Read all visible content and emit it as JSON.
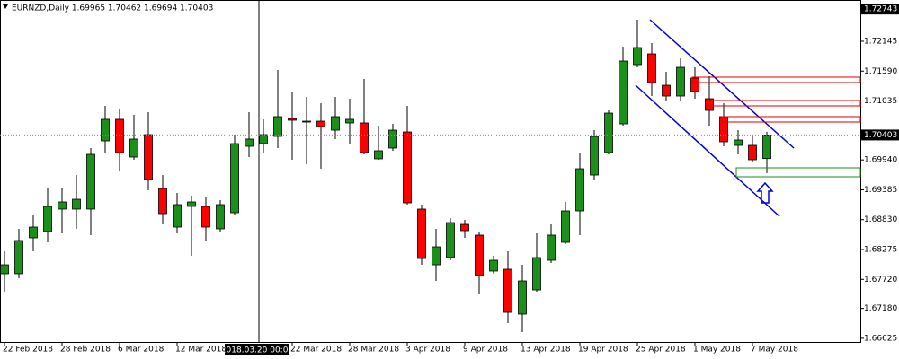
{
  "chart_data": {
    "type": "candlestick",
    "title": "EURNZD,Daily  1.69965 1.70462 1.69694 1.70403",
    "crosshair_label": "2018.03.20 00:00",
    "categories": [
      "22 Feb 2018",
      null,
      null,
      null,
      "28 Feb 2018",
      null,
      null,
      null,
      "6 Mar 2018",
      null,
      null,
      null,
      "12 Mar 2018",
      null,
      null,
      null,
      null,
      null,
      null,
      null,
      "22 Mar 2018",
      null,
      null,
      null,
      "28 Mar 2018",
      null,
      null,
      null,
      "3 Apr 2018",
      null,
      null,
      null,
      "9 Apr 2018",
      null,
      null,
      null,
      "13 Apr 2018",
      null,
      null,
      null,
      "19 Apr 2018",
      null,
      null,
      null,
      "25 Apr 2018",
      null,
      null,
      null,
      "1 May 2018",
      null,
      null,
      null,
      "7 May 2018",
      null
    ],
    "open": [
      1.67825,
      1.67825,
      1.68492,
      1.68609,
      1.69026,
      1.69026,
      1.69026,
      1.70293,
      1.70694,
      1.69993,
      1.7041,
      1.69409,
      1.68692,
      1.69076,
      1.69076,
      1.68659,
      1.68959,
      1.70193,
      1.70243,
      1.70377,
      1.7071,
      1.7066,
      1.7066,
      1.70493,
      1.70627,
      1.70627,
      1.6996,
      1.7016,
      1.7046,
      1.69026,
      1.67991,
      1.68125,
      1.68742,
      1.68542,
      1.67875,
      1.67908,
      1.67074,
      1.67524,
      1.68075,
      1.68408,
      1.68992,
      1.69659,
      1.70076,
      1.7061,
      1.71711,
      1.71911,
      1.71327,
      1.71127,
      1.71461,
      1.71077,
      1.70744,
      1.7021,
      1.7021,
      1.69965
    ],
    "high": [
      1.68242,
      1.68659,
      1.68909,
      1.69409,
      1.69409,
      1.69659,
      1.7016,
      1.70944,
      1.70877,
      1.70777,
      1.70827,
      1.69659,
      1.69326,
      1.69276,
      1.69242,
      1.69192,
      1.7041,
      1.70827,
      1.70694,
      1.71611,
      1.71194,
      1.71111,
      1.70994,
      1.71111,
      1.71077,
      1.71444,
      1.70577,
      1.7061,
      1.70944,
      1.69109,
      1.68659,
      1.68859,
      1.68825,
      1.68609,
      1.68158,
      1.68242,
      1.67991,
      1.68575,
      1.68742,
      1.69159,
      1.70076,
      1.70493,
      1.7086,
      1.72045,
      1.72545,
      1.72111,
      1.71578,
      1.71828,
      1.71661,
      1.71494,
      1.70994,
      1.70493,
      1.70377,
      1.70462
    ],
    "low": [
      1.67491,
      1.67741,
      1.68242,
      1.68408,
      1.68575,
      1.68659,
      1.68542,
      1.70076,
      1.69743,
      1.69943,
      1.69376,
      1.68742,
      1.68575,
      1.68158,
      1.68442,
      1.68609,
      1.68909,
      1.69993,
      1.70076,
      1.7016,
      1.69943,
      1.6986,
      1.69776,
      1.70327,
      1.70243,
      1.70043,
      1.69943,
      1.7011,
      1.69109,
      1.67991,
      1.67691,
      1.68075,
      1.68492,
      1.67441,
      1.67825,
      1.66907,
      1.6674,
      1.67491,
      1.68025,
      1.68375,
      1.68542,
      1.69576,
      1.70043,
      1.70577,
      1.71661,
      1.71127,
      1.71027,
      1.71044,
      1.71077,
      1.70577,
      1.70193,
      1.70043,
      1.6991,
      1.69694
    ],
    "close": [
      1.67991,
      1.68442,
      1.68692,
      1.69076,
      1.69159,
      1.69209,
      1.70043,
      1.70694,
      1.70076,
      1.70327,
      1.69576,
      1.68942,
      1.69109,
      1.69159,
      1.68692,
      1.69109,
      1.70243,
      1.70327,
      1.7041,
      1.70744,
      1.70677,
      1.70644,
      1.7056,
      1.70744,
      1.70694,
      1.70076,
      1.7011,
      1.70493,
      1.69142,
      1.68108,
      1.68325,
      1.68775,
      1.68625,
      1.67791,
      1.68075,
      1.67107,
      1.67691,
      1.68125,
      1.68542,
      1.68992,
      1.69776,
      1.70377,
      1.7081,
      1.71778,
      1.72028,
      1.71377,
      1.71127,
      1.71661,
      1.71211,
      1.7086,
      1.70277,
      1.7031,
      1.69943,
      1.70403
    ],
    "up_color": "#1a8f1a",
    "down_color": "#ff0000",
    "ylim": [
      1.66557,
      1.72912
    ],
    "yticks": [
      1.72145,
      {
        "value": 1.7159,
        "label": "1.71590"
      },
      1.71035,
      {
        "value": 1.6994,
        "label": "1.69940"
      },
      1.69385,
      {
        "value": 1.6883,
        "label": "1.68830"
      },
      1.68275,
      {
        "value": 1.6772,
        "label": "1.67720"
      },
      {
        "value": 1.6718,
        "label": "1.67180"
      },
      1.66625
    ],
    "marked_prices": [
      1.72743,
      1.70403
    ]
  }
}
